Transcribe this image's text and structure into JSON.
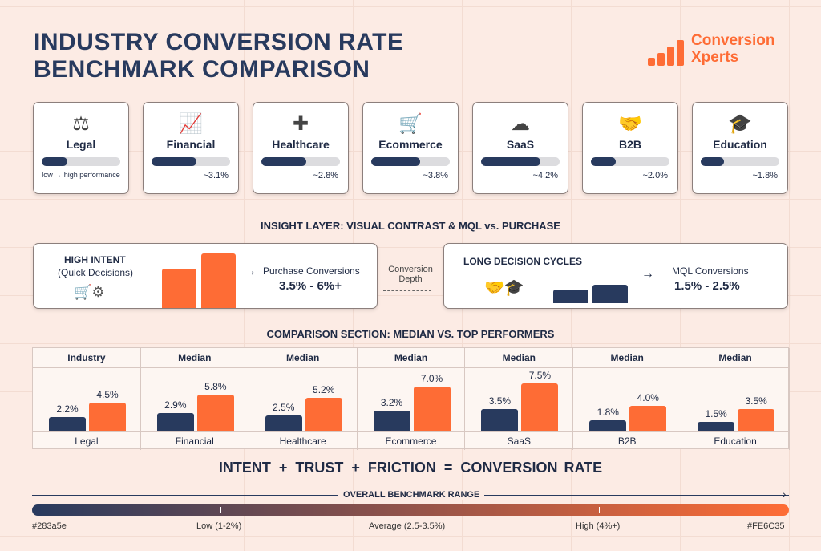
{
  "title": [
    "INDUSTRY CONVERSION RATE",
    "BENCHMARK COMPARISON"
  ],
  "logo": {
    "line1": "Conversion",
    "line2": "Xperts",
    "color": "#fe6c35"
  },
  "cards": [
    {
      "name": "Legal",
      "icon": "gavel-icon",
      "level": 0.33,
      "caption": "low → high performance"
    },
    {
      "name": "Financial",
      "icon": "coins-growth-icon",
      "level": 0.57,
      "caption": "~3.1%"
    },
    {
      "name": "Healthcare",
      "icon": "medical-cross-heart-icon",
      "level": 0.57,
      "caption": "~2.8%"
    },
    {
      "name": "Ecommerce",
      "icon": "shopping-cart-icon",
      "level": 0.62,
      "caption": "~3.8%"
    },
    {
      "name": "SaaS",
      "icon": "cloud-gear-icon",
      "level": 0.75,
      "caption": "~4.2%"
    },
    {
      "name": "B2B",
      "icon": "handshake-icon",
      "level": 0.32,
      "caption": "~2.0%"
    },
    {
      "name": "Education",
      "icon": "graduation-cap-icon",
      "level": 0.3,
      "caption": "~1.8%"
    }
  ],
  "insight": {
    "heading": "INSIGHT LAYER: VISUAL CONTRAST & MQL vs. PURCHASE",
    "left": {
      "title": "HIGH INTENT",
      "subtitle": "(Quick Decisions)",
      "label": "Purchase Conversions",
      "range": "3.5% - 6%+"
    },
    "middle": {
      "line1": "Conversion",
      "line2": "Depth"
    },
    "right": {
      "title": "LONG DECISION CYCLES",
      "label": "MQL Conversions",
      "range": "1.5% - 2.5%"
    }
  },
  "chart_data": {
    "type": "bar",
    "title": "COMPARISON SECTION: MEDIAN VS. TOP PERFORMERS",
    "headers": [
      "Industry",
      "Median",
      "Median",
      "Median",
      "Median",
      "Median",
      "Median"
    ],
    "categories": [
      "Legal",
      "Financial",
      "Healthcare",
      "Ecommerce",
      "SaaS",
      "B2B",
      "Education"
    ],
    "series": [
      {
        "values": [
          2.2,
          2.9,
          2.5,
          3.2,
          3.5,
          1.8,
          1.5
        ],
        "color": "#283a5e"
      },
      {
        "values": [
          4.5,
          5.8,
          5.2,
          7.0,
          7.5,
          4.0,
          3.5
        ],
        "color": "#fe6c35"
      }
    ],
    "unit": "%"
  },
  "formula": {
    "terms": [
      "INTENT",
      "+",
      "TRUST",
      "+",
      "FRICTION",
      "=",
      "CONVERSION RATE"
    ]
  },
  "range": {
    "title": "OVERALL BENCHMARK RANGE",
    "labels": [
      "#283a5e",
      "Low (1-2%)",
      "Average (2.5-3.5%)",
      "High (4%+)",
      "#FE6C35"
    ],
    "start_color": "#283a5e",
    "end_color": "#fe6c35"
  }
}
